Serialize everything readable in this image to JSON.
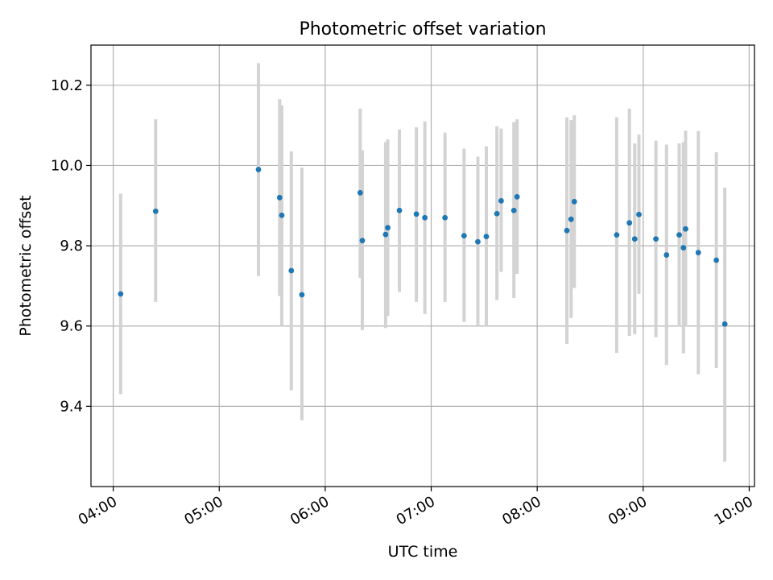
{
  "chart_data": {
    "type": "scatter",
    "title": "Photometric offset variation",
    "xlabel": "UTC time",
    "ylabel": "Photometric offset",
    "x_unit": "UTC hour of day",
    "xlim": [
      3.79,
      10.05
    ],
    "ylim": [
      9.2,
      10.3
    ],
    "xticks": [
      {
        "value": 4,
        "label": "04:00"
      },
      {
        "value": 5,
        "label": "05:00"
      },
      {
        "value": 6,
        "label": "06:00"
      },
      {
        "value": 7,
        "label": "07:00"
      },
      {
        "value": 8,
        "label": "08:00"
      },
      {
        "value": 9,
        "label": "09:00"
      },
      {
        "value": 10,
        "label": "10:00"
      }
    ],
    "yticks": [
      {
        "value": 9.4,
        "label": "9.4"
      },
      {
        "value": 9.6,
        "label": "9.6"
      },
      {
        "value": 9.8,
        "label": "9.8"
      },
      {
        "value": 10.0,
        "label": "10.0"
      },
      {
        "value": 10.2,
        "label": "10.2"
      }
    ],
    "grid": true,
    "point_color": "#1f77b4",
    "errorbar_color": "#d3d3d3",
    "points": [
      {
        "x": 4.07,
        "y": 9.68,
        "ylo": 9.43,
        "yhi": 9.93
      },
      {
        "x": 4.4,
        "y": 9.886,
        "ylo": 9.66,
        "yhi": 10.115
      },
      {
        "x": 5.37,
        "y": 9.99,
        "ylo": 9.725,
        "yhi": 10.255
      },
      {
        "x": 5.57,
        "y": 9.92,
        "ylo": 9.675,
        "yhi": 10.165
      },
      {
        "x": 5.59,
        "y": 9.876,
        "ylo": 9.6,
        "yhi": 10.15
      },
      {
        "x": 5.68,
        "y": 9.738,
        "ylo": 9.44,
        "yhi": 10.035
      },
      {
        "x": 5.78,
        "y": 9.678,
        "ylo": 9.365,
        "yhi": 9.995
      },
      {
        "x": 6.33,
        "y": 9.932,
        "ylo": 9.72,
        "yhi": 10.142
      },
      {
        "x": 6.35,
        "y": 9.813,
        "ylo": 9.59,
        "yhi": 10.038
      },
      {
        "x": 6.57,
        "y": 9.828,
        "ylo": 9.595,
        "yhi": 10.058
      },
      {
        "x": 6.59,
        "y": 9.845,
        "ylo": 9.625,
        "yhi": 10.065
      },
      {
        "x": 6.7,
        "y": 9.888,
        "ylo": 9.685,
        "yhi": 10.09
      },
      {
        "x": 6.86,
        "y": 9.879,
        "ylo": 9.66,
        "yhi": 10.095
      },
      {
        "x": 6.94,
        "y": 9.87,
        "ylo": 9.63,
        "yhi": 10.11
      },
      {
        "x": 7.13,
        "y": 9.87,
        "ylo": 9.66,
        "yhi": 10.082
      },
      {
        "x": 7.31,
        "y": 9.825,
        "ylo": 9.61,
        "yhi": 10.042
      },
      {
        "x": 7.44,
        "y": 9.81,
        "ylo": 9.6,
        "yhi": 10.022
      },
      {
        "x": 7.52,
        "y": 9.823,
        "ylo": 9.6,
        "yhi": 10.048
      },
      {
        "x": 7.62,
        "y": 9.88,
        "ylo": 9.665,
        "yhi": 10.098
      },
      {
        "x": 7.66,
        "y": 9.912,
        "ylo": 9.735,
        "yhi": 10.092
      },
      {
        "x": 7.78,
        "y": 9.888,
        "ylo": 9.67,
        "yhi": 10.108
      },
      {
        "x": 7.81,
        "y": 9.922,
        "ylo": 9.73,
        "yhi": 10.115
      },
      {
        "x": 8.28,
        "y": 9.838,
        "ylo": 9.555,
        "yhi": 10.12
      },
      {
        "x": 8.32,
        "y": 9.866,
        "ylo": 9.62,
        "yhi": 10.113
      },
      {
        "x": 8.35,
        "y": 9.91,
        "ylo": 9.695,
        "yhi": 10.125
      },
      {
        "x": 8.75,
        "y": 9.827,
        "ylo": 9.533,
        "yhi": 10.12
      },
      {
        "x": 8.87,
        "y": 9.857,
        "ylo": 9.575,
        "yhi": 10.142
      },
      {
        "x": 8.92,
        "y": 9.817,
        "ylo": 9.58,
        "yhi": 10.055
      },
      {
        "x": 8.96,
        "y": 9.878,
        "ylo": 9.68,
        "yhi": 10.077
      },
      {
        "x": 9.12,
        "y": 9.817,
        "ylo": 9.572,
        "yhi": 10.062
      },
      {
        "x": 9.22,
        "y": 9.777,
        "ylo": 9.503,
        "yhi": 10.052
      },
      {
        "x": 9.34,
        "y": 9.827,
        "ylo": 9.598,
        "yhi": 10.055
      },
      {
        "x": 9.38,
        "y": 9.795,
        "ylo": 9.532,
        "yhi": 10.058
      },
      {
        "x": 9.4,
        "y": 9.842,
        "ylo": 9.598,
        "yhi": 10.087
      },
      {
        "x": 9.52,
        "y": 9.783,
        "ylo": 9.48,
        "yhi": 10.086
      },
      {
        "x": 9.69,
        "y": 9.764,
        "ylo": 9.495,
        "yhi": 10.033
      },
      {
        "x": 9.77,
        "y": 9.605,
        "ylo": 9.262,
        "yhi": 9.945
      }
    ]
  }
}
